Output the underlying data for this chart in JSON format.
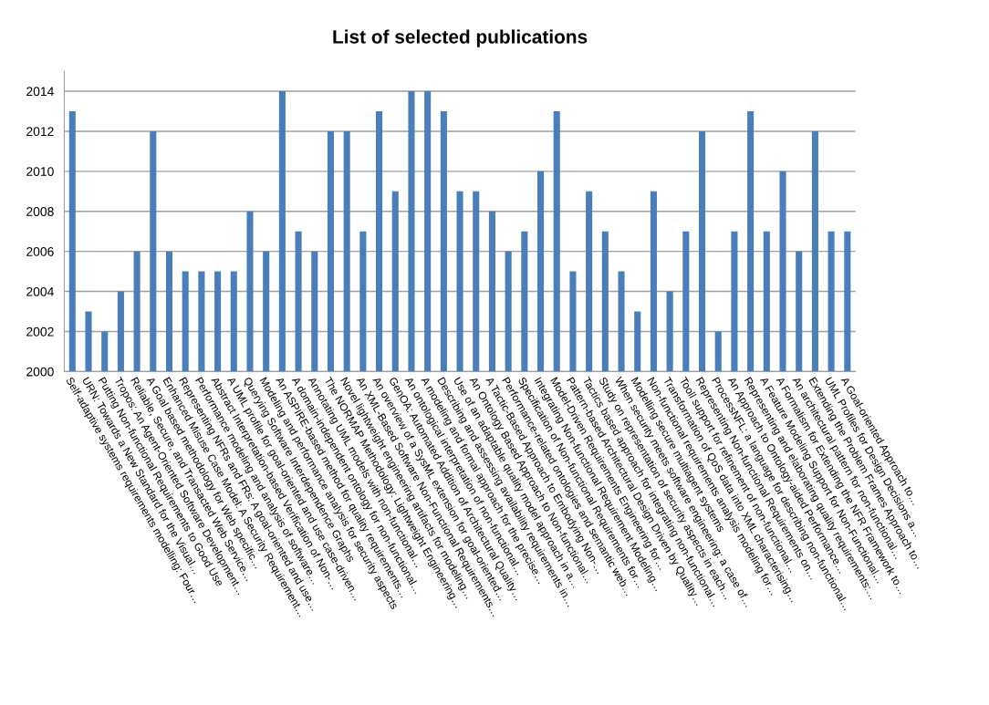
{
  "chart_data": {
    "type": "bar",
    "title": "List of selected publications",
    "categories": [
      "Self-adaptive systems requirements modelling: Four…",
      "URN: Towards a New Standard for the Visual…",
      "Putting Non-functional Requirements to Good Use",
      "Tropos: An Agent-Oriented Software Development…",
      "Reliable, Secure, and Transacted Web Service…",
      "A Goal based methodology for Web specific…",
      "Enhanced Misuse Case Model: A Security Requirement…",
      "Representing NFRs and FRs: A goal-oriented and use…",
      "Performance modeling and analysis of software…",
      "Abstract Interpretation-based Verification of Non-…",
      "A UML profile for goal-oriented and use case-driven…",
      "Querying Software Interdependence Graphs",
      "Modeling and performance analysis for security aspects",
      "An ASPIRE-based method for quality requirements…",
      "A domain-independent ontology for non-functional…",
      "Annotating UML models with non-functional…",
      "The NORMAP Methodology: Lightweight Engineering…",
      "Novel lightweight engineering artifacts for modeling…",
      "An XML-Based Software Non-Functional Requirements…",
      "An overview of a SysML extension for goal-oriented…",
      "GenOA: Automated Addition of Architectural Quality…",
      "An ontological interpretation of non-functional…",
      "A modeling and formal approach for the precise…",
      "Describing and assessing availability requirements in…",
      "Use of an adaptable quality model approach in a…",
      "An Ontology Based Approach to Non-functional…",
      "A Tactic-Based Approach to Embodying Non-…",
      "Performance-related ontologies and semantic web…",
      "Specification of Non-functional Requirements for…",
      "Integrating Non-functional Requirement Modeling…",
      "Model-Driven Requirements Engineering for…",
      "Pattern-based Architectural Design Driven by Quality…",
      "Tactics based approach for integrating non-functional…",
      "Study on representation of security aspects in each…",
      "When security meets software engineering: a case of…",
      "Modelling secure multiagent systems",
      "Non-functional requirements analysis modeling for…",
      "Transformation of QoS data into XML characterising…",
      "Tooll support for refinement of non-functional…",
      "Representing Non-functional Requirements on…",
      "ProcessNFL: a language for describing non-functional…",
      "An Approach to Ontology-aided Performance…",
      "Representing and elaborating quality requirements:…",
      "A Feature Modeling Support for Non-Functional…",
      "A Formalism for Extending the NFR Framework to…",
      "An architectural pattern for non-functional…",
      "Extending the Problem Frames Approach to…",
      "UML Profiles for Design Decisions a…",
      "A Goal-oriented Approach to…"
    ],
    "values": [
      2013,
      2003,
      2002,
      2004,
      2006,
      2012,
      2006,
      2005,
      2005,
      2005,
      2005,
      2008,
      2006,
      2014,
      2007,
      2006,
      2012,
      2012,
      2007,
      2013,
      2009,
      2014,
      2014,
      2013,
      2009,
      2009,
      2008,
      2006,
      2007,
      2010,
      2013,
      2005,
      2009,
      2007,
      2005,
      2003,
      2009,
      2004,
      2007,
      2012,
      2002,
      2007,
      2013,
      2007,
      2010,
      2006,
      2012,
      2007,
      2007
    ],
    "color": "#4a7ebb",
    "ylim": [
      2000,
      2015
    ],
    "yticks": [
      2000,
      2002,
      2004,
      2006,
      2008,
      2010,
      2012,
      2014
    ],
    "grid": "y"
  }
}
